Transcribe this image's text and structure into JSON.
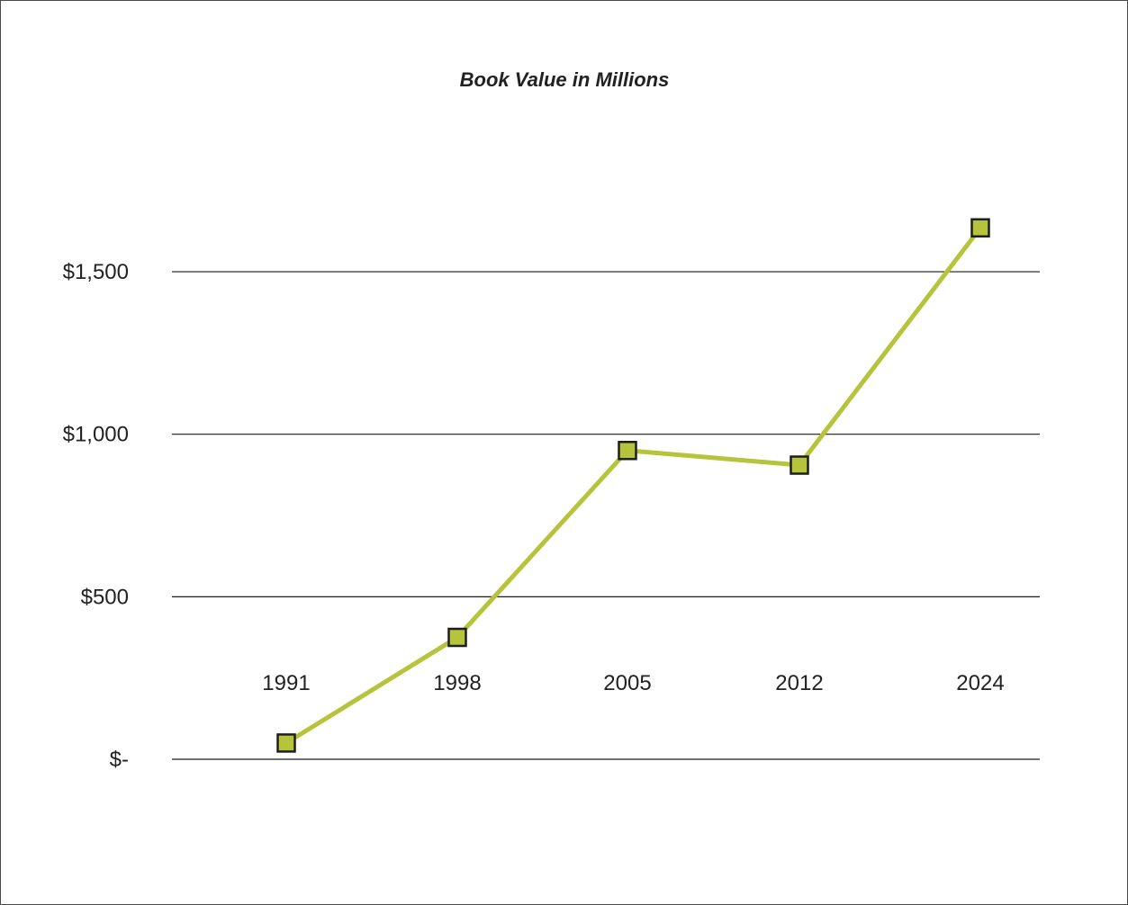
{
  "chart_data": {
    "type": "line",
    "title": "Book Value in Millions",
    "xlabel": "",
    "ylabel": "",
    "categories": [
      "1991",
      "1998",
      "2005",
      "2012",
      "2024"
    ],
    "series": [
      {
        "values": [
          50,
          375,
          950,
          905,
          1635
        ]
      }
    ],
    "ylim": [
      0,
      1700
    ],
    "y_ticks": [
      {
        "value": 0,
        "label": "$-"
      },
      {
        "value": 500,
        "label": "$500"
      },
      {
        "value": 1000,
        "label": "$1,000"
      },
      {
        "value": 1500,
        "label": "$1,500"
      }
    ],
    "grid": true,
    "legend": "none",
    "colors": {
      "line": "#b5c43a",
      "marker_fill": "#b5c43a",
      "marker_edge": "#1e1e1e",
      "grid": "#1a1a1a"
    }
  }
}
